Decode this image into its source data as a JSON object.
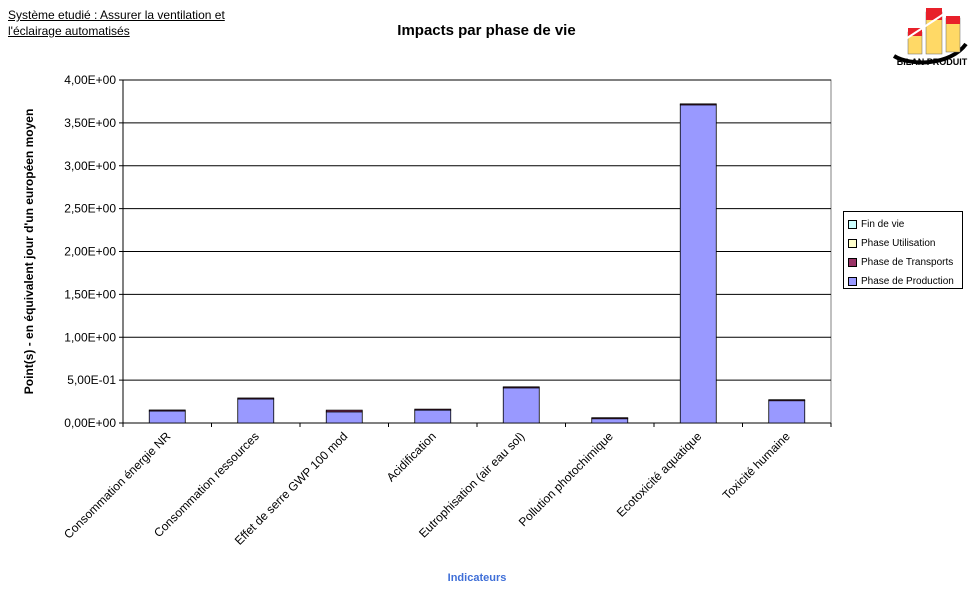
{
  "header": {
    "subtitle_line1": "Système etudié : Assurer la ventilation et",
    "subtitle_line2": "l'éclairage automatisés",
    "logo_label": "BILAN PRODUIT",
    "logo_icon": "bar-chart-logo-icon"
  },
  "chart_data": {
    "type": "bar",
    "stacked": true,
    "title": "Impacts par phase de vie",
    "xlabel": "Indicateurs",
    "ylabel": "Point(s)  - en équivalent jour d'un européen moyen",
    "ylim": [
      0,
      4.0
    ],
    "yticks": [
      0,
      0.5,
      1.0,
      1.5,
      2.0,
      2.5,
      3.0,
      3.5,
      4.0
    ],
    "ytick_labels": [
      "0,00E+00",
      "5,00E-01",
      "1,00E+00",
      "1,50E+00",
      "2,00E+00",
      "2,50E+00",
      "3,00E+00",
      "3,50E+00",
      "4,00E+00"
    ],
    "grid": true,
    "legend_position": "right",
    "categories": [
      "Consommation énergie NR",
      "Consommation ressources",
      "Effet de serre GWP 100 mod",
      "Acidification",
      "Eutrophisation (air eau sol)",
      "Pollution photochimique",
      "Ecotoxicité aquatique",
      "Toxicité humaine"
    ],
    "series": [
      {
        "name": "Phase de Production",
        "color": "#9999ff",
        "values": [
          0.14,
          0.28,
          0.13,
          0.15,
          0.41,
          0.05,
          3.71,
          0.26
        ]
      },
      {
        "name": "Phase de Transports",
        "color": "#993366",
        "values": [
          0.003,
          0.01,
          0.02,
          0.005,
          0.002,
          0.001,
          0.005,
          0.01
        ]
      },
      {
        "name": "Phase Utilisation",
        "color": "#ffffcc",
        "values": [
          0,
          0,
          0,
          0,
          0,
          0,
          0,
          0
        ]
      },
      {
        "name": "Fin de vie",
        "color": "#ccffff",
        "values": [
          0,
          0,
          0,
          0,
          0,
          0,
          0,
          0
        ]
      }
    ],
    "legend_order": [
      "Fin de vie",
      "Phase Utilisation",
      "Phase de Transports",
      "Phase de Production"
    ]
  }
}
